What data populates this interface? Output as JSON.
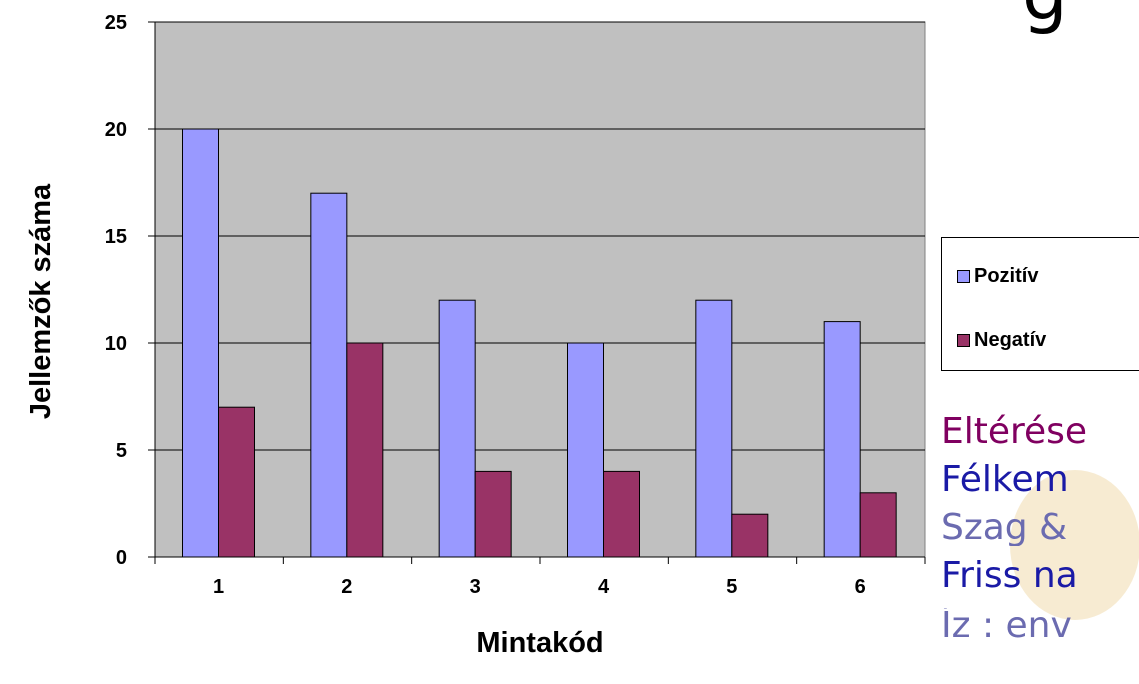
{
  "chart_data": {
    "type": "bar",
    "categories": [
      "1",
      "2",
      "3",
      "4",
      "5",
      "6"
    ],
    "series": [
      {
        "name": "Pozitív",
        "values": [
          20,
          17,
          12,
          10,
          12,
          11
        ],
        "color": "#9999ff"
      },
      {
        "name": "Negatív",
        "values": [
          7,
          10,
          4,
          4,
          2,
          3
        ],
        "color": "#993366"
      }
    ],
    "xlabel": "Mintakód",
    "ylabel": "Jellemzők száma",
    "ylim": [
      0,
      25
    ],
    "yticks": [
      "0",
      "5",
      "10",
      "15",
      "20",
      "25"
    ],
    "grid": true,
    "plot_background": "#c0c0c0",
    "legend_position": "right"
  },
  "background_text": {
    "title_fragment": "g",
    "lines": [
      {
        "text": "Eltérése",
        "color": "#800060"
      },
      {
        "text": "Félkem",
        "color": "#1a1aa6"
      },
      {
        "text": "Szag &",
        "color": "#6b6bb0"
      },
      {
        "text": "Friss na",
        "color": "#1a1aa6"
      },
      {
        "text": "Íz : env",
        "color": "#6b6bb0"
      }
    ]
  }
}
